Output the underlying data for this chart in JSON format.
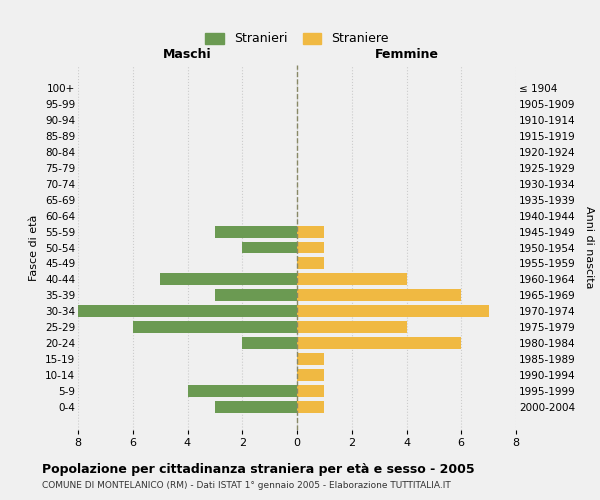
{
  "age_groups": [
    "100+",
    "95-99",
    "90-94",
    "85-89",
    "80-84",
    "75-79",
    "70-74",
    "65-69",
    "60-64",
    "55-59",
    "50-54",
    "45-49",
    "40-44",
    "35-39",
    "30-34",
    "25-29",
    "20-24",
    "15-19",
    "10-14",
    "5-9",
    "0-4"
  ],
  "birth_years": [
    "≤ 1904",
    "1905-1909",
    "1910-1914",
    "1915-1919",
    "1920-1924",
    "1925-1929",
    "1930-1934",
    "1935-1939",
    "1940-1944",
    "1945-1949",
    "1950-1954",
    "1955-1959",
    "1960-1964",
    "1965-1969",
    "1970-1974",
    "1975-1979",
    "1980-1984",
    "1985-1989",
    "1990-1994",
    "1995-1999",
    "2000-2004"
  ],
  "maschi": [
    0,
    0,
    0,
    0,
    0,
    0,
    0,
    0,
    0,
    3,
    2,
    0,
    5,
    3,
    8,
    6,
    2,
    0,
    0,
    4,
    3
  ],
  "femmine": [
    0,
    0,
    0,
    0,
    0,
    0,
    0,
    0,
    0,
    1,
    1,
    1,
    4,
    6,
    7,
    4,
    6,
    1,
    1,
    1,
    1
  ],
  "male_color": "#6b9a52",
  "female_color": "#f0b942",
  "bg_color": "#f0f0f0",
  "grid_color": "#cccccc",
  "center_line_color": "#888866",
  "title": "Popolazione per cittadinanza straniera per età e sesso - 2005",
  "subtitle": "COMUNE DI MONTELANICO (RM) - Dati ISTAT 1° gennaio 2005 - Elaborazione TUTTITALIA.IT",
  "xlabel_left": "Maschi",
  "xlabel_right": "Femmine",
  "ylabel_left": "Fasce di età",
  "ylabel_right": "Anni di nascita",
  "legend_male": "Stranieri",
  "legend_female": "Straniere",
  "xlim": 8,
  "bar_height": 0.75
}
